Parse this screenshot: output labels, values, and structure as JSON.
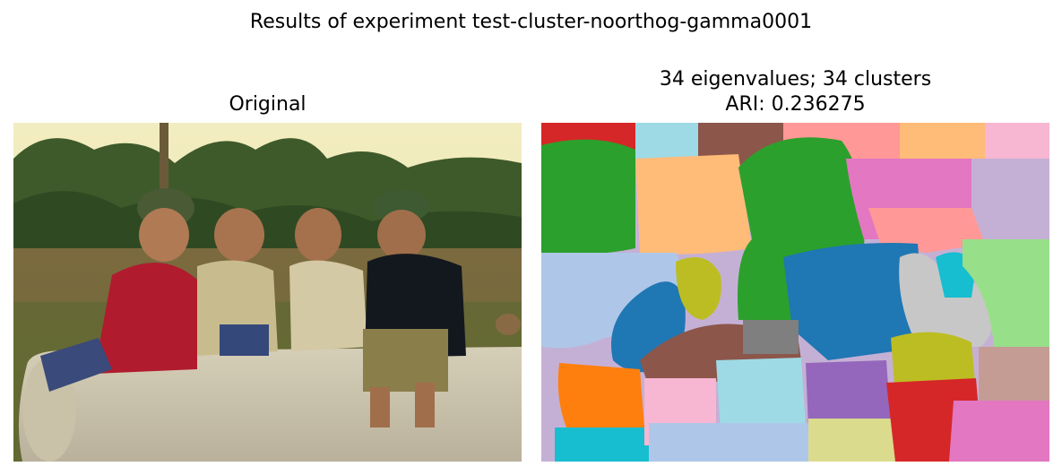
{
  "figure": {
    "suptitle": "Results of experiment test-cluster-noorthog-gamma0001"
  },
  "left_panel": {
    "title": "Original"
  },
  "right_panel": {
    "title_line1": "34 eigenvalues; 34 clusters",
    "title_line2": "ARI: 0.236275"
  },
  "palette": [
    "#1f77b4",
    "#aec7e8",
    "#ff7f0e",
    "#ffbb78",
    "#2ca02c",
    "#98df8a",
    "#d62728",
    "#ff9896",
    "#9467bd",
    "#c5b0d5",
    "#8c564b",
    "#c49c94",
    "#e377c2",
    "#f7b6d2",
    "#7f7f7f",
    "#c7c7c7",
    "#bcbd22",
    "#dbdb8d",
    "#17becf",
    "#9edae5"
  ]
}
